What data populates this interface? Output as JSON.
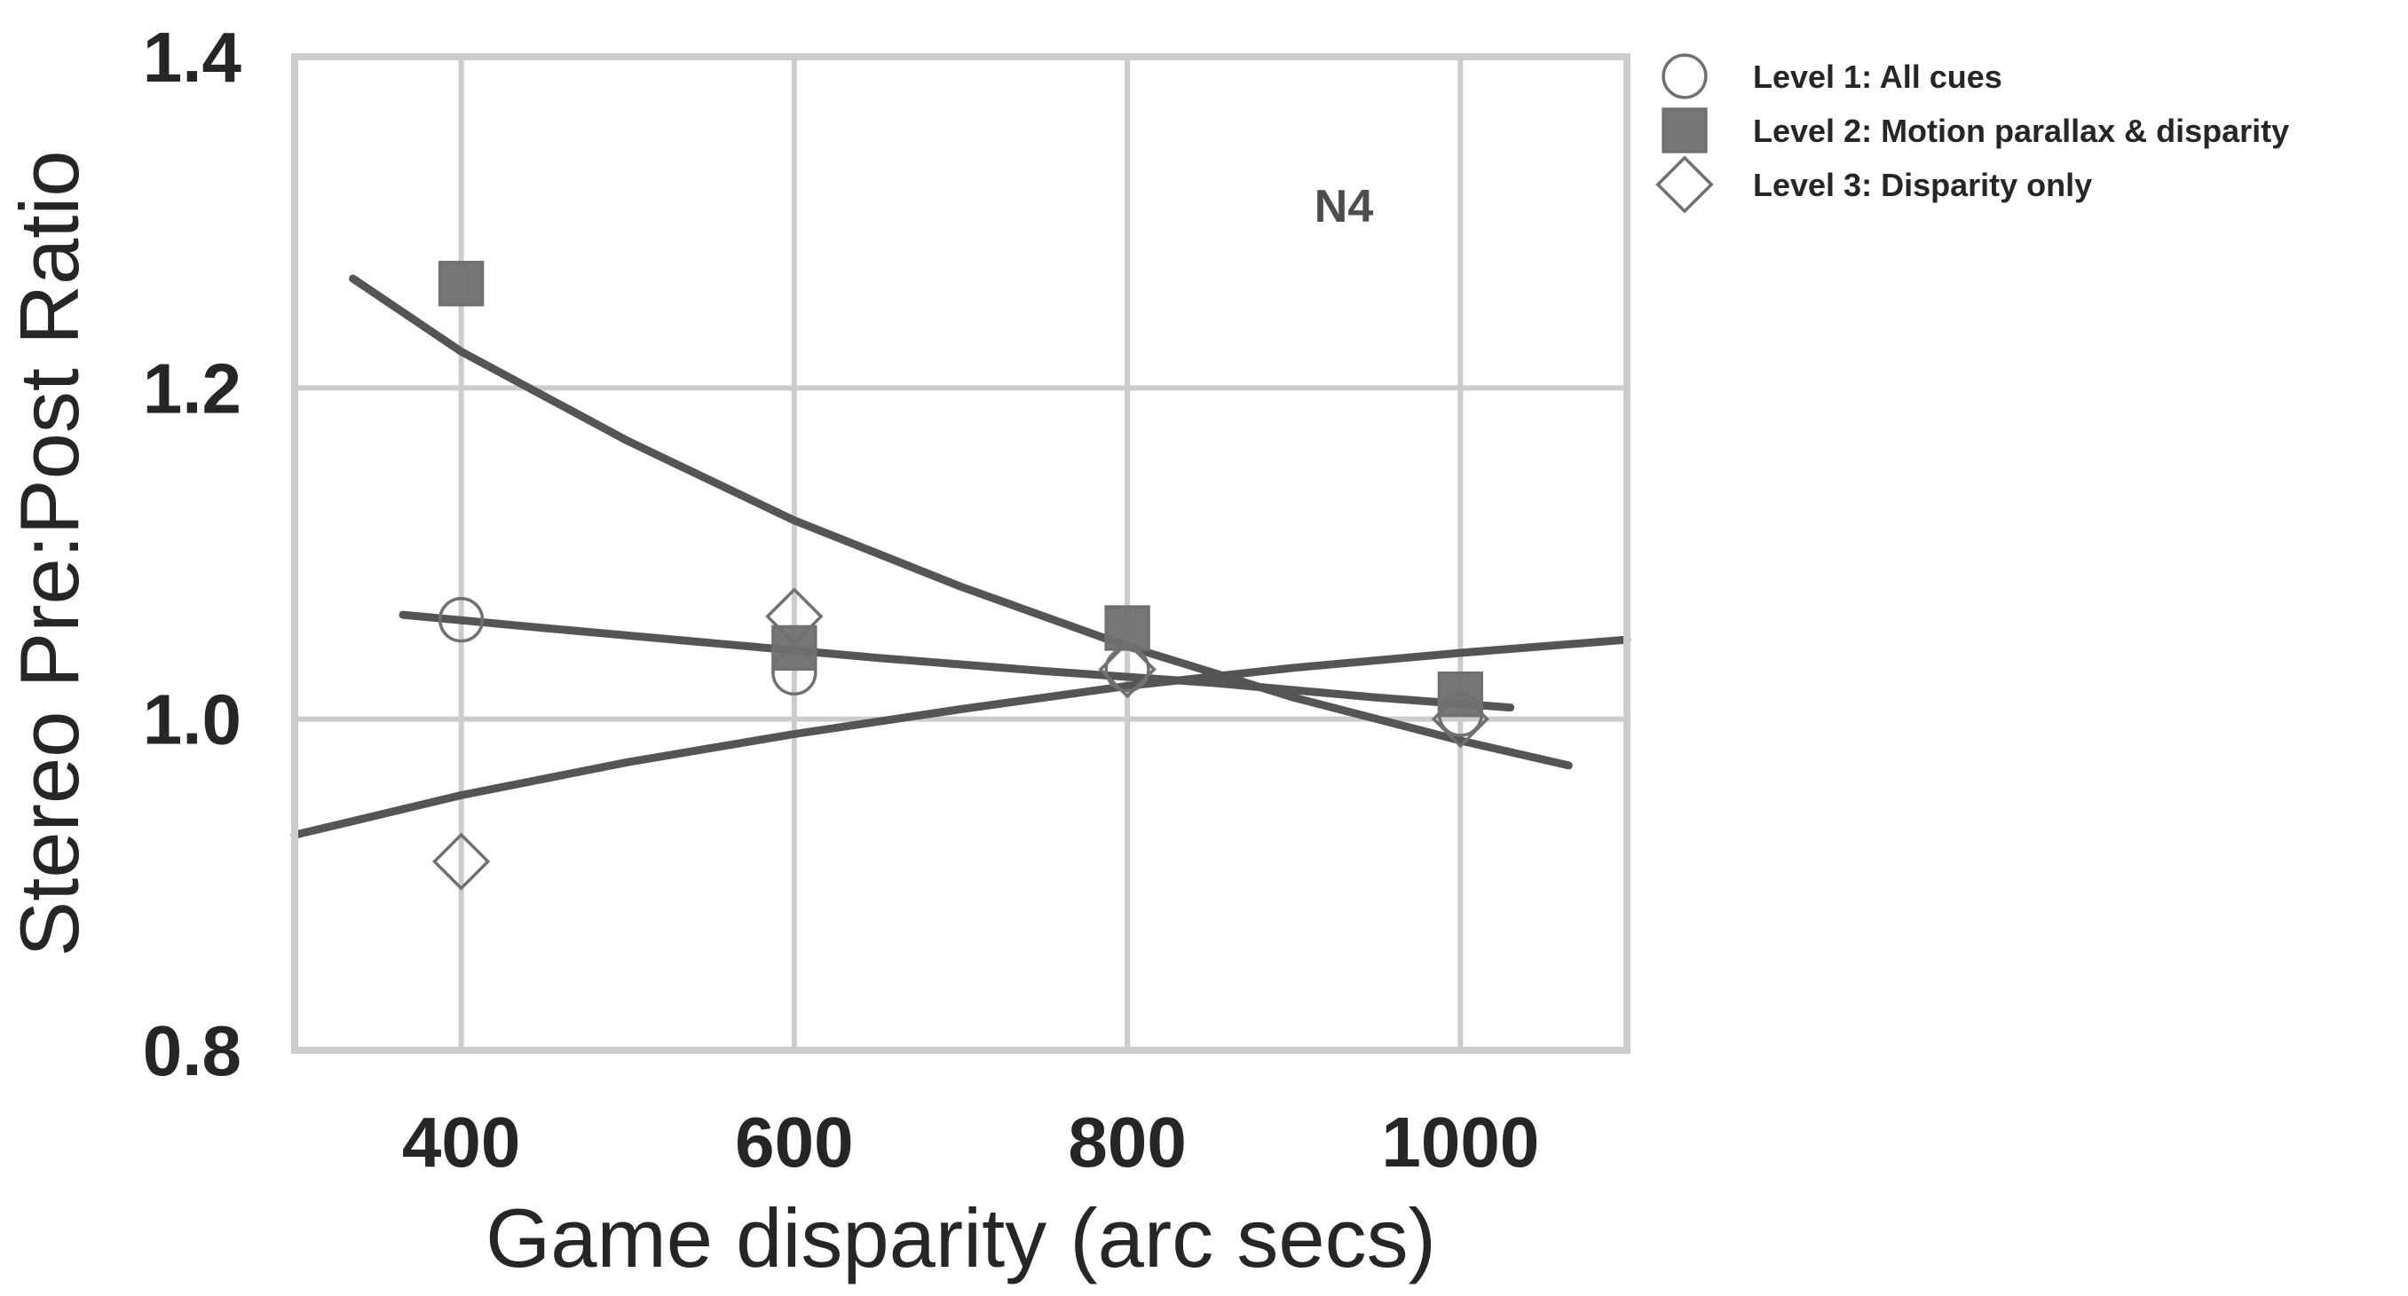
{
  "chart_data": {
    "type": "scatter",
    "title": "",
    "xlabel": "Game disparity (arc secs)",
    "ylabel": "Stereo Pre:Post Ratio",
    "xlim": [
      300,
      1100
    ],
    "ylim": [
      0.8,
      1.4
    ],
    "xticks": [
      400,
      600,
      800,
      1000
    ],
    "xtick_labels": [
      "400",
      "600",
      "800",
      "1000"
    ],
    "yticks": [
      0.8,
      1.0,
      1.2,
      1.4
    ],
    "ytick_labels": [
      "0.8",
      "1.0",
      "1.2",
      "1.4"
    ],
    "grid": true,
    "legend_placement": "outside right, top",
    "annotation": "N4",
    "annotation_at": [
      930,
      1.31
    ],
    "series": [
      {
        "name": "Level 1: All cues",
        "marker": "circle",
        "filled": false,
        "x": [
          400,
          600,
          800,
          1000
        ],
        "y": [
          1.06,
          1.028,
          1.03,
          1.003
        ],
        "fit": {
          "x_from": 365,
          "x_to": 1030,
          "x": [
            365,
            450,
            550,
            650,
            750,
            850,
            950,
            1030
          ],
          "y": [
            1.063,
            1.055,
            1.046,
            1.037,
            1.029,
            1.022,
            1.013,
            1.007
          ]
        }
      },
      {
        "name": "Level 2: Motion parallax & disparity",
        "marker": "square",
        "filled": true,
        "x": [
          400,
          600,
          800,
          1000
        ],
        "y": [
          1.263,
          1.043,
          1.055,
          1.015
        ],
        "fit": {
          "x_from": 335,
          "x_to": 1065,
          "x": [
            335,
            400,
            500,
            600,
            700,
            800,
            900,
            1000,
            1065
          ],
          "y": [
            1.266,
            1.222,
            1.168,
            1.12,
            1.08,
            1.044,
            1.013,
            0.987,
            0.972
          ]
        }
      },
      {
        "name": "Level 3: Disparity only",
        "marker": "diamond",
        "filled": false,
        "x": [
          400,
          600,
          800,
          1000
        ],
        "y": [
          0.914,
          1.062,
          1.03,
          1.0
        ],
        "fit": {
          "x_from": 300,
          "x_to": 1100,
          "x": [
            300,
            400,
            500,
            600,
            700,
            800,
            900,
            1000,
            1100
          ],
          "y": [
            0.93,
            0.954,
            0.974,
            0.991,
            1.006,
            1.02,
            1.031,
            1.04,
            1.048
          ]
        }
      }
    ],
    "colors": {
      "fit_line": "#555555",
      "marker_edge": "#707070",
      "marker_fill": "#707070",
      "grid": "#cccccc",
      "axis_frame": "#cccccc"
    }
  }
}
